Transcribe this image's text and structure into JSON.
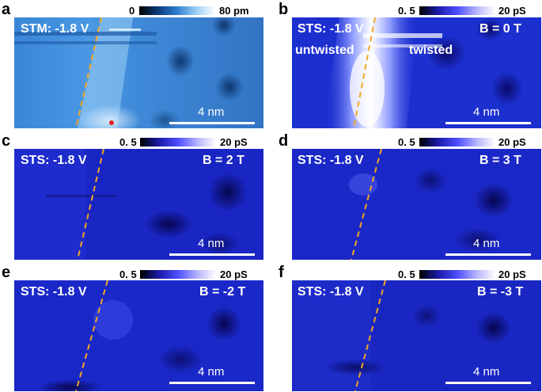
{
  "panels": [
    {
      "letter": "a",
      "cbar_lo": "0",
      "cbar_hi": "80 pm",
      "title": "STM: -1.8 V",
      "field": "",
      "extra_left": "",
      "extra_right": "",
      "scale": "4 nm"
    },
    {
      "letter": "b",
      "cbar_lo": "0. 5",
      "cbar_hi": "20 pS",
      "title": "STS: -1.8 V",
      "field": "B = 0 T",
      "extra_left": "untwisted",
      "extra_right": "twisted",
      "scale": "4 nm"
    },
    {
      "letter": "c",
      "cbar_lo": "0. 5",
      "cbar_hi": "20 pS",
      "title": "STS: -1.8 V",
      "field": "B = 2 T",
      "extra_left": "",
      "extra_right": "",
      "scale": "4 nm"
    },
    {
      "letter": "d",
      "cbar_lo": "0. 5",
      "cbar_hi": "20 pS",
      "title": "STS: -1.8 V",
      "field": "B = 3 T",
      "extra_left": "",
      "extra_right": "",
      "scale": "4 nm"
    },
    {
      "letter": "e",
      "cbar_lo": "0. 5",
      "cbar_hi": "20 pS",
      "title": "STS: -1.8 V",
      "field": "B = -2 T",
      "extra_left": "",
      "extra_right": "",
      "scale": "4 nm"
    },
    {
      "letter": "f",
      "cbar_lo": "0. 5",
      "cbar_hi": "20 pS",
      "title": "STS: -1.8 V",
      "field": "B = -3 T",
      "extra_left": "",
      "extra_right": "",
      "scale": "4 nm"
    }
  ],
  "colors": {
    "stm_colormap": [
      "#000000",
      "#0b3a7a",
      "#2f7fd0",
      "#9fd0f5",
      "#ffffff"
    ],
    "sts_colormap": [
      "#000000",
      "#1a1aa8",
      "#4d4dff",
      "#b3b3ff",
      "#ffffff"
    ],
    "boundary_line": "#f5a623"
  }
}
